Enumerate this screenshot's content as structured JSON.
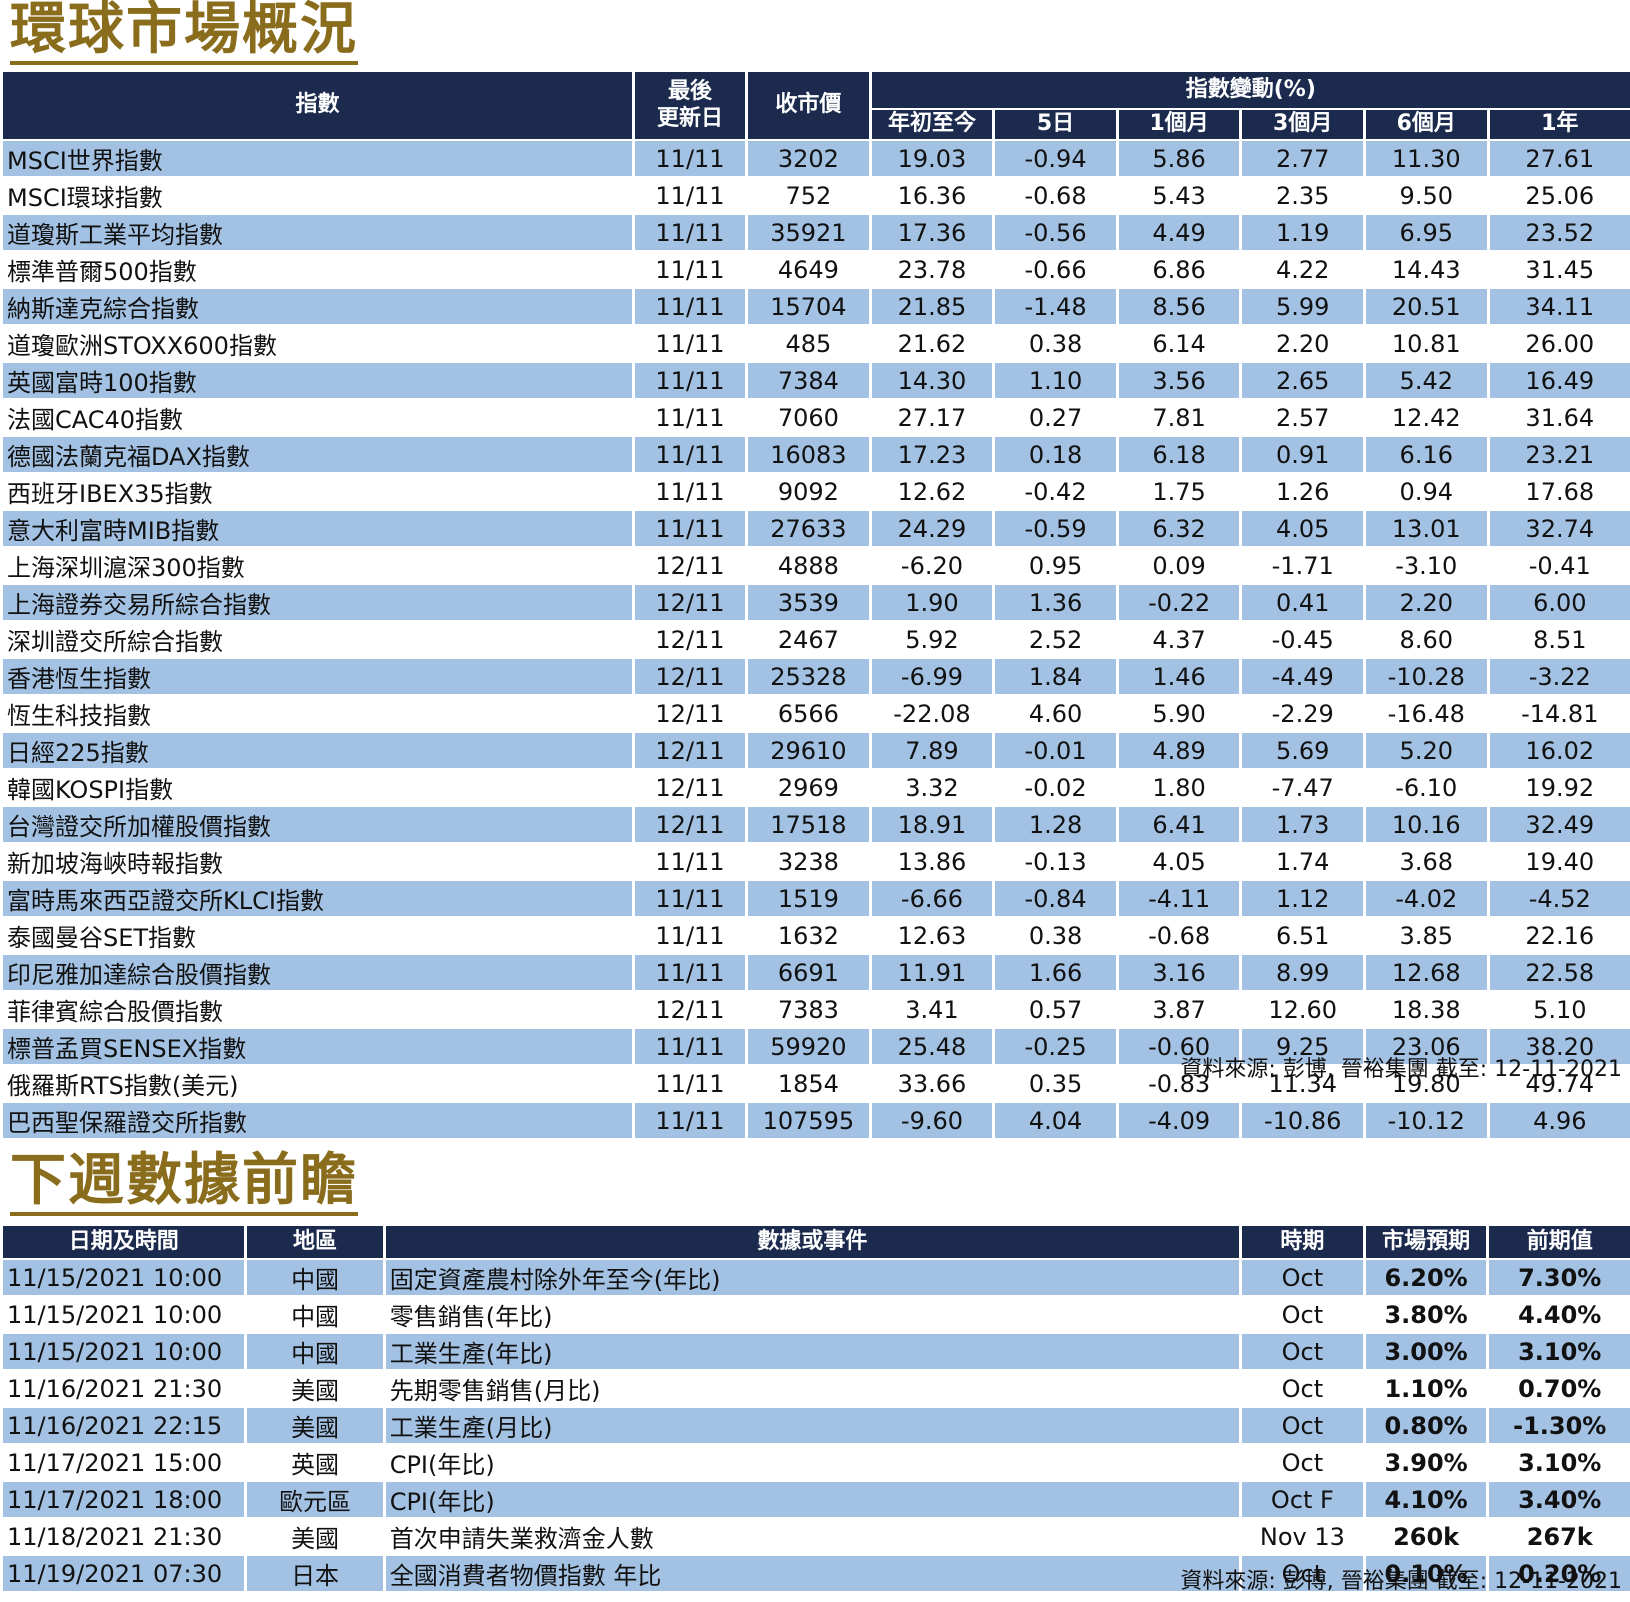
{
  "market": {
    "title": "環球市場概況",
    "headers": {
      "index": "指數",
      "last_update_line1": "最後",
      "last_update_line2": "更新日",
      "close": "收市價",
      "change_group": "指數變動(%)",
      "ytd": "年初至今",
      "d5": "5日",
      "m1": "1個月",
      "m3": "3個月",
      "m6": "6個月",
      "y1": "1年"
    },
    "rows": [
      {
        "name": "MSCI世界指數",
        "date": "11/11",
        "close": "3202",
        "ytd": "19.03",
        "d5": "-0.94",
        "m1": "5.86",
        "m3": "2.77",
        "m6": "11.30",
        "y1": "27.61"
      },
      {
        "name": "MSCI環球指數",
        "date": "11/11",
        "close": "752",
        "ytd": "16.36",
        "d5": "-0.68",
        "m1": "5.43",
        "m3": "2.35",
        "m6": "9.50",
        "y1": "25.06"
      },
      {
        "name": "道瓊斯工業平均指數",
        "date": "11/11",
        "close": "35921",
        "ytd": "17.36",
        "d5": "-0.56",
        "m1": "4.49",
        "m3": "1.19",
        "m6": "6.95",
        "y1": "23.52"
      },
      {
        "name": "標準普爾500指數",
        "date": "11/11",
        "close": "4649",
        "ytd": "23.78",
        "d5": "-0.66",
        "m1": "6.86",
        "m3": "4.22",
        "m6": "14.43",
        "y1": "31.45"
      },
      {
        "name": "納斯達克綜合指數",
        "date": "11/11",
        "close": "15704",
        "ytd": "21.85",
        "d5": "-1.48",
        "m1": "8.56",
        "m3": "5.99",
        "m6": "20.51",
        "y1": "34.11"
      },
      {
        "name": "道瓊歐洲STOXX600指數",
        "date": "11/11",
        "close": "485",
        "ytd": "21.62",
        "d5": "0.38",
        "m1": "6.14",
        "m3": "2.20",
        "m6": "10.81",
        "y1": "26.00"
      },
      {
        "name": "英國富時100指數",
        "date": "11/11",
        "close": "7384",
        "ytd": "14.30",
        "d5": "1.10",
        "m1": "3.56",
        "m3": "2.65",
        "m6": "5.42",
        "y1": "16.49"
      },
      {
        "name": "法國CAC40指數",
        "date": "11/11",
        "close": "7060",
        "ytd": "27.17",
        "d5": "0.27",
        "m1": "7.81",
        "m3": "2.57",
        "m6": "12.42",
        "y1": "31.64"
      },
      {
        "name": "德國法蘭克福DAX指數",
        "date": "11/11",
        "close": "16083",
        "ytd": "17.23",
        "d5": "0.18",
        "m1": "6.18",
        "m3": "0.91",
        "m6": "6.16",
        "y1": "23.21"
      },
      {
        "name": "西班牙IBEX35指數",
        "date": "11/11",
        "close": "9092",
        "ytd": "12.62",
        "d5": "-0.42",
        "m1": "1.75",
        "m3": "1.26",
        "m6": "0.94",
        "y1": "17.68"
      },
      {
        "name": "意大利富時MIB指數",
        "date": "11/11",
        "close": "27633",
        "ytd": "24.29",
        "d5": "-0.59",
        "m1": "6.32",
        "m3": "4.05",
        "m6": "13.01",
        "y1": "32.74"
      },
      {
        "name": "上海深圳滬深300指數",
        "date": "12/11",
        "close": "4888",
        "ytd": "-6.20",
        "d5": "0.95",
        "m1": "0.09",
        "m3": "-1.71",
        "m6": "-3.10",
        "y1": "-0.41"
      },
      {
        "name": "上海證券交易所綜合指數",
        "date": "12/11",
        "close": "3539",
        "ytd": "1.90",
        "d5": "1.36",
        "m1": "-0.22",
        "m3": "0.41",
        "m6": "2.20",
        "y1": "6.00"
      },
      {
        "name": "深圳證交所綜合指數",
        "date": "12/11",
        "close": "2467",
        "ytd": "5.92",
        "d5": "2.52",
        "m1": "4.37",
        "m3": "-0.45",
        "m6": "8.60",
        "y1": "8.51"
      },
      {
        "name": "香港恆生指數",
        "date": "12/11",
        "close": "25328",
        "ytd": "-6.99",
        "d5": "1.84",
        "m1": "1.46",
        "m3": "-4.49",
        "m6": "-10.28",
        "y1": "-3.22"
      },
      {
        "name": "恆生科技指數",
        "date": "12/11",
        "close": "6566",
        "ytd": "-22.08",
        "d5": "4.60",
        "m1": "5.90",
        "m3": "-2.29",
        "m6": "-16.48",
        "y1": "-14.81"
      },
      {
        "name": "日經225指數",
        "date": "12/11",
        "close": "29610",
        "ytd": "7.89",
        "d5": "-0.01",
        "m1": "4.89",
        "m3": "5.69",
        "m6": "5.20",
        "y1": "16.02"
      },
      {
        "name": "韓國KOSPI指數",
        "date": "12/11",
        "close": "2969",
        "ytd": "3.32",
        "d5": "-0.02",
        "m1": "1.80",
        "m3": "-7.47",
        "m6": "-6.10",
        "y1": "19.92"
      },
      {
        "name": "台灣證交所加權股價指數",
        "date": "12/11",
        "close": "17518",
        "ytd": "18.91",
        "d5": "1.28",
        "m1": "6.41",
        "m3": "1.73",
        "m6": "10.16",
        "y1": "32.49"
      },
      {
        "name": "新加坡海峽時報指數",
        "date": "11/11",
        "close": "3238",
        "ytd": "13.86",
        "d5": "-0.13",
        "m1": "4.05",
        "m3": "1.74",
        "m6": "3.68",
        "y1": "19.40"
      },
      {
        "name": "富時馬來西亞證交所KLCI指數",
        "date": "11/11",
        "close": "1519",
        "ytd": "-6.66",
        "d5": "-0.84",
        "m1": "-4.11",
        "m3": "1.12",
        "m6": "-4.02",
        "y1": "-4.52"
      },
      {
        "name": "泰國曼谷SET指數",
        "date": "11/11",
        "close": "1632",
        "ytd": "12.63",
        "d5": "0.38",
        "m1": "-0.68",
        "m3": "6.51",
        "m6": "3.85",
        "y1": "22.16"
      },
      {
        "name": "印尼雅加達綜合股價指數",
        "date": "11/11",
        "close": "6691",
        "ytd": "11.91",
        "d5": "1.66",
        "m1": "3.16",
        "m3": "8.99",
        "m6": "12.68",
        "y1": "22.58"
      },
      {
        "name": "菲律賓綜合股價指數",
        "date": "12/11",
        "close": "7383",
        "ytd": "3.41",
        "d5": "0.57",
        "m1": "3.87",
        "m3": "12.60",
        "m6": "18.38",
        "y1": "5.10"
      },
      {
        "name": "標普孟買SENSEX指數",
        "date": "11/11",
        "close": "59920",
        "ytd": "25.48",
        "d5": "-0.25",
        "m1": "-0.60",
        "m3": "9.25",
        "m6": "23.06",
        "y1": "38.20"
      },
      {
        "name": "俄羅斯RTS指數(美元)",
        "date": "11/11",
        "close": "1854",
        "ytd": "33.66",
        "d5": "0.35",
        "m1": "-0.83",
        "m3": "11.34",
        "m6": "19.80",
        "y1": "49.74"
      },
      {
        "name": "巴西聖保羅證交所指數",
        "date": "11/11",
        "close": "107595",
        "ytd": "-9.60",
        "d5": "4.04",
        "m1": "-4.09",
        "m3": "-10.86",
        "m6": "-10.12",
        "y1": "4.96"
      }
    ],
    "source": "資料來源: 彭博, 晉裕集團 截至: 12-11-2021"
  },
  "calendar": {
    "title": "下週數據前瞻",
    "headers": {
      "datetime": "日期及時間",
      "region": "地區",
      "event": "數據或事件",
      "period": "時期",
      "forecast": "市場預期",
      "previous": "前期值"
    },
    "rows": [
      {
        "datetime": "11/15/2021 10:00",
        "region": "中國",
        "event": "固定資產農村除外年至今(年比)",
        "period": "Oct",
        "forecast": "6.20%",
        "previous": "7.30%"
      },
      {
        "datetime": "11/15/2021 10:00",
        "region": "中國",
        "event": "零售銷售(年比)",
        "period": "Oct",
        "forecast": "3.80%",
        "previous": "4.40%"
      },
      {
        "datetime": "11/15/2021 10:00",
        "region": "中國",
        "event": "工業生產(年比)",
        "period": "Oct",
        "forecast": "3.00%",
        "previous": "3.10%"
      },
      {
        "datetime": "11/16/2021 21:30",
        "region": "美國",
        "event": "先期零售銷售(月比)",
        "period": "Oct",
        "forecast": "1.10%",
        "previous": "0.70%"
      },
      {
        "datetime": "11/16/2021 22:15",
        "region": "美國",
        "event": "工業生產(月比)",
        "period": "Oct",
        "forecast": "0.80%",
        "previous": "-1.30%"
      },
      {
        "datetime": "11/17/2021 15:00",
        "region": "英國",
        "event": "CPI(年比)",
        "period": "Oct",
        "forecast": "3.90%",
        "previous": "3.10%"
      },
      {
        "datetime": "11/17/2021 18:00",
        "region": "歐元區",
        "event": "CPI(年比)",
        "period": "Oct F",
        "forecast": "4.10%",
        "previous": "3.40%"
      },
      {
        "datetime": "11/18/2021 21:30",
        "region": "美國",
        "event": "首次申請失業救濟金人數",
        "period": "Nov 13",
        "forecast": "260k",
        "previous": "267k"
      },
      {
        "datetime": "11/19/2021 07:30",
        "region": "日本",
        "event": "全國消費者物價指數 年比",
        "period": "Oct",
        "forecast": "0.10%",
        "previous": "0.20%"
      }
    ],
    "source": "資料來源: 彭博, 晉裕集團 截至: 12-11-2021"
  },
  "colors": {
    "title_gold": "#8a6d1c",
    "header_navy": "#1b2a4d",
    "row_stripe_blue": "#a3c2e3"
  }
}
